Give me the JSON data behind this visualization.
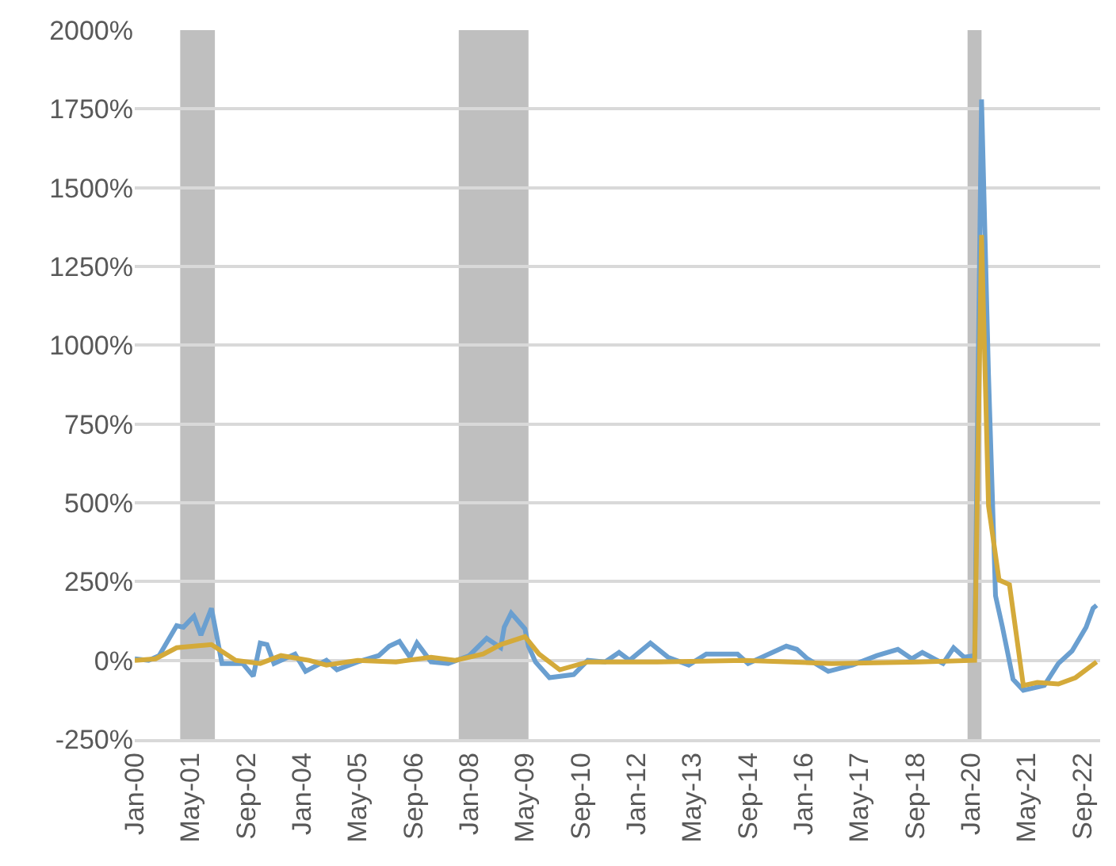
{
  "chart_data": {
    "type": "line",
    "xlim": [
      "2000-01",
      "2023-02"
    ],
    "xticks": [
      {
        "value": "2000-01",
        "label": "Jan-00"
      },
      {
        "value": "2001-05",
        "label": "May-01"
      },
      {
        "value": "2002-09",
        "label": "Sep-02"
      },
      {
        "value": "2004-01",
        "label": "Jan-04"
      },
      {
        "value": "2005-05",
        "label": "May-05"
      },
      {
        "value": "2006-09",
        "label": "Sep-06"
      },
      {
        "value": "2008-01",
        "label": "Jan-08"
      },
      {
        "value": "2009-05",
        "label": "May-09"
      },
      {
        "value": "2010-09",
        "label": "Sep-10"
      },
      {
        "value": "2012-01",
        "label": "Jan-12"
      },
      {
        "value": "2013-05",
        "label": "May-13"
      },
      {
        "value": "2014-09",
        "label": "Sep-14"
      },
      {
        "value": "2016-01",
        "label": "Jan-16"
      },
      {
        "value": "2017-05",
        "label": "May-17"
      },
      {
        "value": "2018-09",
        "label": "Sep-18"
      },
      {
        "value": "2020-01",
        "label": "Jan-20"
      },
      {
        "value": "2021-05",
        "label": "May-21"
      },
      {
        "value": "2022-09",
        "label": "Sep-22"
      }
    ],
    "ylim": [
      -250,
      2000
    ],
    "yticks": [
      {
        "value": -250,
        "label": "-250%"
      },
      {
        "value": 0,
        "label": "0%"
      },
      {
        "value": 250,
        "label": "250%"
      },
      {
        "value": 500,
        "label": "500%"
      },
      {
        "value": 750,
        "label": "750%"
      },
      {
        "value": 1000,
        "label": "1000%"
      },
      {
        "value": 1250,
        "label": "1250%"
      },
      {
        "value": 1500,
        "label": "1500%"
      },
      {
        "value": 1750,
        "label": "1750%"
      },
      {
        "value": 2000,
        "label": "2000%"
      }
    ],
    "grid": "y",
    "marker": "none",
    "line_style": "solid",
    "bands": [
      {
        "axis": "x",
        "from": "2001-02",
        "to": "2001-12",
        "color": "#bfbfbf"
      },
      {
        "axis": "x",
        "from": "2007-10",
        "to": "2009-06",
        "color": "#bfbfbf"
      },
      {
        "axis": "x",
        "from": "2019-12",
        "to": "2020-04",
        "color": "#bfbfbf"
      }
    ],
    "series": [
      {
        "color": "#6a9fd0",
        "x": [
          "2000-01",
          "2000-05",
          "2000-08",
          "2001-01",
          "2001-03",
          "2001-06",
          "2001-08",
          "2001-11",
          "2002-02",
          "2002-08",
          "2002-11",
          "2003-01",
          "2003-03",
          "2003-05",
          "2003-11",
          "2004-02",
          "2004-08",
          "2004-11",
          "2005-05",
          "2005-11",
          "2006-02",
          "2006-05",
          "2006-08",
          "2006-10",
          "2007-02",
          "2007-07",
          "2008-01",
          "2008-06",
          "2008-10",
          "2008-11",
          "2009-01",
          "2009-05",
          "2009-06",
          "2009-08",
          "2009-12",
          "2010-07",
          "2010-11",
          "2011-04",
          "2011-08",
          "2011-11",
          "2012-05",
          "2012-10",
          "2013-04",
          "2013-09",
          "2014-06",
          "2014-09",
          "2015-03",
          "2015-08",
          "2015-11",
          "2016-02",
          "2016-08",
          "2017-03",
          "2017-10",
          "2018-04",
          "2018-08",
          "2018-11",
          "2019-05",
          "2019-08",
          "2019-11",
          "2020-02",
          "2020-04",
          "2020-06",
          "2020-08",
          "2020-10",
          "2021-01",
          "2021-04",
          "2021-10",
          "2022-02",
          "2022-06",
          "2022-10",
          "2022-12",
          "2023-01"
        ],
        "values": [
          5,
          0,
          15,
          110,
          105,
          140,
          80,
          165,
          -10,
          -10,
          -50,
          55,
          50,
          -10,
          20,
          -35,
          0,
          -30,
          -5,
          15,
          45,
          60,
          10,
          55,
          -5,
          -10,
          15,
          70,
          40,
          105,
          150,
          100,
          45,
          -5,
          -55,
          -45,
          0,
          -5,
          25,
          0,
          55,
          10,
          -15,
          20,
          20,
          -10,
          20,
          45,
          35,
          5,
          -35,
          -15,
          15,
          35,
          5,
          25,
          -10,
          40,
          10,
          15,
          1780,
          905,
          205,
          105,
          -60,
          -95,
          -80,
          -10,
          30,
          105,
          165,
          175
        ]
      },
      {
        "color": "#d4aa3a",
        "x": [
          "2000-01",
          "2000-07",
          "2001-01",
          "2001-06",
          "2001-11",
          "2002-06",
          "2003-01",
          "2003-07",
          "2004-03",
          "2004-08",
          "2005-05",
          "2006-04",
          "2007-02",
          "2007-09",
          "2008-05",
          "2008-10",
          "2009-05",
          "2009-09",
          "2010-03",
          "2010-11",
          "2011-06",
          "2012-07",
          "2014-08",
          "2016-09",
          "2018-10",
          "2020-02",
          "2020-04",
          "2020-06",
          "2020-09",
          "2020-12",
          "2021-04",
          "2021-08",
          "2022-02",
          "2022-07",
          "2023-01"
        ],
        "values": [
          0,
          5,
          40,
          45,
          50,
          0,
          -10,
          15,
          0,
          -15,
          0,
          -5,
          10,
          0,
          20,
          50,
          75,
          20,
          -30,
          -5,
          -5,
          -5,
          0,
          -10,
          -5,
          0,
          1350,
          490,
          255,
          240,
          -80,
          -70,
          -75,
          -55,
          -5
        ]
      }
    ]
  }
}
